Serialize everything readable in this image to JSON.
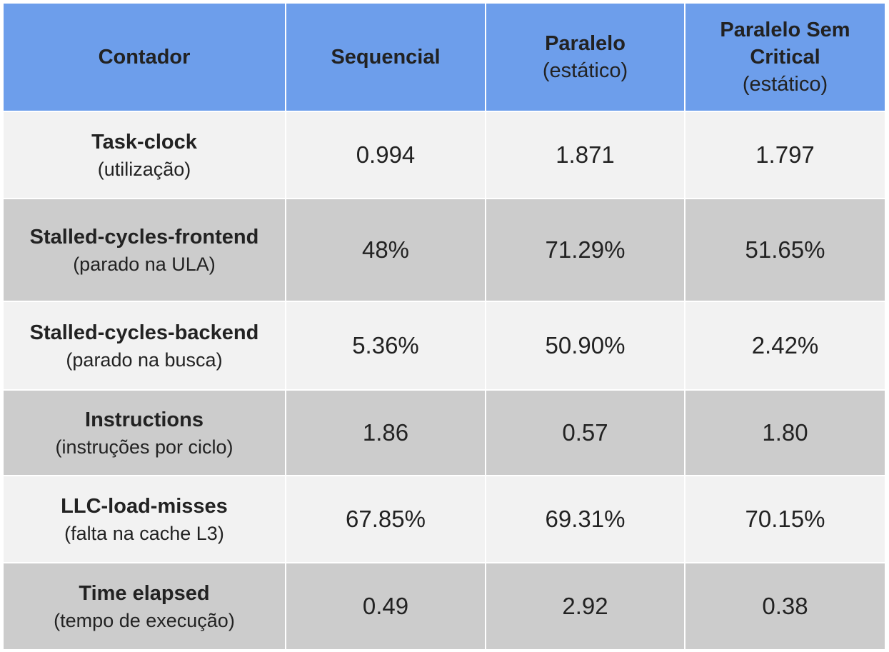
{
  "table": {
    "header": {
      "contador": "Contador",
      "sequencial": "Sequencial",
      "paralelo_main": "Paralelo",
      "paralelo_sub": "(estático)",
      "paralelo_sem_main_1": "Paralelo Sem",
      "paralelo_sem_main_2": "Critical",
      "paralelo_sem_sub": "(estático)"
    },
    "rows": [
      {
        "label": "Task-clock",
        "sub": "(utilização)",
        "sequencial": "0.994",
        "paralelo": "1.871",
        "paralelo_sem_critical": "1.797"
      },
      {
        "label": "Stalled-cycles-frontend",
        "sub": "(parado na ULA)",
        "sequencial": "48%",
        "paralelo": "71.29%",
        "paralelo_sem_critical": "51.65%"
      },
      {
        "label": "Stalled-cycles-backend",
        "sub": "(parado na busca)",
        "sequencial": "5.36%",
        "paralelo": "50.90%",
        "paralelo_sem_critical": "2.42%"
      },
      {
        "label": "Instructions",
        "sub": "(instruções por ciclo)",
        "sequencial": "1.86",
        "paralelo": "0.57",
        "paralelo_sem_critical": "1.80"
      },
      {
        "label": "LLC-load-misses",
        "sub": "(falta na cache L3)",
        "sequencial": "67.85%",
        "paralelo": "69.31%",
        "paralelo_sem_critical": "70.15%"
      },
      {
        "label": "Time elapsed",
        "sub": "(tempo de execução)",
        "sequencial": "0.49",
        "paralelo": "2.92",
        "paralelo_sem_critical": "0.38"
      }
    ]
  },
  "colors": {
    "header_bg": "#6d9eeb",
    "row_light": "#f2f2f2",
    "row_dark": "#cccccc",
    "text": "#222222"
  }
}
